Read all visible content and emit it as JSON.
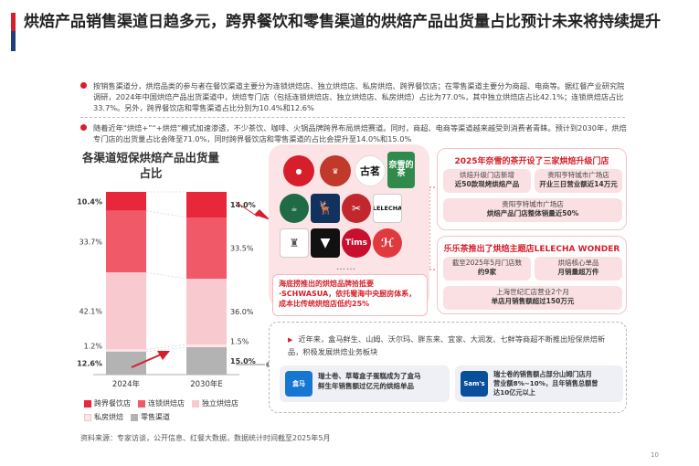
{
  "title": "烘焙产品销售渠道日趋多元，跨界餐饮和零售渠道的烘焙产品出货量占比预计未来将持续提升",
  "bullets": [
    "按销售渠道分，烘焙品类的参与者在餐饮渠道主要分为连锁烘焙店、独立烘焙店、私房烘焙、跨界餐饮店；在零售渠道主要分为商超、电商等。据红餐产业研究院调研，2024年中国烘焙产品出货渠道中，烘焙专门店（包括连锁烘焙店、独立烘焙店、私房烘焙）占比为77.0%，其中独立烘焙店占比42.1%；连锁烘焙店占比33.7%。另外，跨界餐饮店和零售渠道占比分别为10.4%和12.6%",
    "随着近年“烘焙+”“+烘焙”模式加速渗透，不少茶饮、咖啡、火锅品牌跨界布局烘焙赛道。同时，商超、电商等渠道越来越受到消费者青睐。预计到2030年，烘焙专门店的出货量占比会降至71.0%，同时跨界餐饮店和零售渠道的占比会提升至14.0%和15.0%"
  ],
  "chart_data": {
    "type": "bar",
    "stacked": true,
    "title": "各渠道短保烘焙产品出货量占比",
    "categories": [
      "2024年",
      "2030年E"
    ],
    "series": [
      {
        "name": "跨界餐饮店",
        "color": "#e8283a",
        "values": [
          10.4,
          14.0
        ]
      },
      {
        "name": "连锁烘焙店",
        "color": "#f05a68",
        "values": [
          33.7,
          33.5
        ]
      },
      {
        "name": "独立烘焙店",
        "color": "#f8c9ce",
        "values": [
          42.1,
          36.0
        ]
      },
      {
        "name": "私房烘焙",
        "color": "#fbe6e8",
        "values": [
          1.2,
          1.5
        ]
      },
      {
        "name": "零售渠道",
        "color": "#b3b3b3",
        "values": [
          12.6,
          15.0
        ]
      }
    ],
    "labels_2024": [
      "10.4%",
      "33.7%",
      "42.1%",
      "1.2%",
      "12.6%"
    ],
    "labels_2030": [
      "14.0%",
      "33.5%",
      "36.0%",
      "1.5%",
      "15.0%"
    ],
    "ylim": [
      0,
      100
    ]
  },
  "brands": {
    "logo1": "",
    "logo2": "",
    "logo3": "古茗",
    "logo4": "奈雪的茶",
    "logo5": "",
    "logo6": "",
    "logo7": "",
    "logo8": "LELECHA",
    "logo9": "",
    "logo10": "",
    "logo11": "Tims",
    "logo12": "",
    "more": "……"
  },
  "haidilao": {
    "text": "海底捞推出的烘焙品牌拾抵要·SCHWASUA，依托蜀海中央厨房体系，成本比传统烘焙店低约25%"
  },
  "naixue": {
    "head": "2025年奈雪的茶开设了三家烘焙升级门店",
    "p1_a": "烘焙升级门店新增",
    "p1_b": "近50款现烤烘焙产品",
    "p2_a": "贵阳亨特城市广场店",
    "p2_b": "开业三日营业额近14万元",
    "p3_a": "贵阳亨特城市广场店",
    "p3_b": "烘焙产品门店整体销量近50%"
  },
  "lelecha": {
    "head": "乐乐茶推出了烘焙主题店LELECHA WONDER",
    "p1_a": "截至2025年5月门店数",
    "p1_b": "约9家",
    "p2_a": "烘焙核心单品",
    "p2_b": "月销量超万件",
    "p3_a": "上海世纪汇店营业2个月",
    "p3_b": "单店月销售额超过150万元"
  },
  "retail": {
    "text": "近年来，盒马鲜生、山姆、沃尔玛、胖东来、宜家、大润发、七鲜等商超不断推出短保烘焙新品，积极发展烘焙业务板块",
    "hema_logo": "盒马",
    "hema_a": "瑞士卷、草莓盒子蛋糕成为了盒马",
    "hema_b": "鲜生年销售额过亿元的烘焙单品",
    "sams_logo": "Sam's",
    "sams_a": "瑞士卷的销售额占部分山姆门店月",
    "sams_b": "营业额8%~10%，且年销售总额曾",
    "sams_c": "达10亿元以上"
  },
  "source": "资料来源：专家访谈，公开信息、红餐大数据，数据统计时间截至2025年5月",
  "page_number": "10"
}
